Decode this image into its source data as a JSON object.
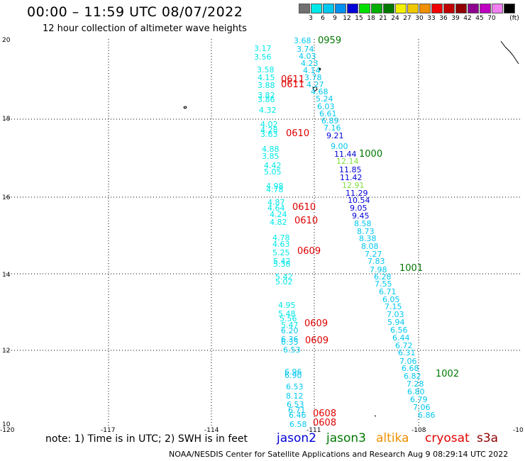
{
  "title": "00:00 – 11:59 UTC 08/07/2022",
  "subtitle": "12 hour collection of altimeter wave heights",
  "legend": {
    "unit": "(ft)",
    "levels": [
      {
        "label": "",
        "color": "#707070"
      },
      {
        "label": "3",
        "color": "#00e8e8"
      },
      {
        "label": "6",
        "color": "#00c8f0"
      },
      {
        "label": "9",
        "color": "#0090f0"
      },
      {
        "label": "12",
        "color": "#0000d8"
      },
      {
        "label": "15",
        "color": "#00e000"
      },
      {
        "label": "18",
        "color": "#00b000"
      },
      {
        "label": "21",
        "color": "#007800"
      },
      {
        "label": "24",
        "color": "#f0f000"
      },
      {
        "label": "27",
        "color": "#f0c800"
      },
      {
        "label": "30",
        "color": "#f09000"
      },
      {
        "label": "33",
        "color": "#f00000"
      },
      {
        "label": "36",
        "color": "#c00000"
      },
      {
        "label": "39",
        "color": "#900000"
      },
      {
        "label": "42",
        "color": "#900090"
      },
      {
        "label": "45",
        "color": "#c000c0"
      },
      {
        "label": "70",
        "color": "#f080f0"
      },
      {
        "label": "",
        "color": "#000000"
      }
    ]
  },
  "axes": {
    "lat_labels": [
      "20",
      "18",
      "16",
      "14",
      "12",
      "10"
    ],
    "lon_labels": [
      "-120",
      "-117",
      "-114",
      "-111",
      "-108",
      "-10"
    ]
  },
  "wave_heights": [
    {
      "value": "3.68",
      "color": "#00c8f0",
      "track": "e"
    },
    {
      "value": "3.74",
      "color": "#00c8f0",
      "track": "e"
    },
    {
      "value": "4.03",
      "color": "#00c8f0",
      "track": "e"
    },
    {
      "value": "4.23",
      "color": "#00c8f0",
      "track": "e"
    },
    {
      "value": "4.14",
      "color": "#00c8f0",
      "track": "e"
    },
    {
      "value": "3.78",
      "color": "#00c8f0",
      "track": "e"
    },
    {
      "value": "4.27",
      "color": "#00c8f0",
      "track": "e"
    },
    {
      "value": "4.68",
      "color": "#00c8f0",
      "track": "e"
    },
    {
      "value": "5.24",
      "color": "#00c8f0",
      "track": "e"
    },
    {
      "value": "6.03",
      "color": "#00c8f0",
      "track": "e"
    },
    {
      "value": "6.61",
      "color": "#00c8f0",
      "track": "e"
    },
    {
      "value": "6.89",
      "color": "#00c8f0",
      "track": "e"
    },
    {
      "value": "7.16",
      "color": "#00c8f0",
      "track": "e"
    },
    {
      "value": "9.21",
      "color": "#0000d8",
      "track": "e"
    },
    {
      "value": "9.00",
      "color": "#00c8f0",
      "track": "e"
    },
    {
      "value": "11.44",
      "color": "#0000d8",
      "track": "e"
    },
    {
      "value": "12.14",
      "color": "#80e040",
      "track": "e"
    },
    {
      "value": "11.85",
      "color": "#0000d8",
      "track": "e"
    },
    {
      "value": "11.42",
      "color": "#0000d8",
      "track": "e"
    },
    {
      "value": "12.91",
      "color": "#80e040",
      "track": "e"
    },
    {
      "value": "11.29",
      "color": "#0000d8",
      "track": "e"
    },
    {
      "value": "10.54",
      "color": "#0000d8",
      "track": "e"
    },
    {
      "value": "9.05",
      "color": "#0000d8",
      "track": "e"
    },
    {
      "value": "9.45",
      "color": "#0000d8",
      "track": "e"
    },
    {
      "value": "8.58",
      "color": "#00c8f0",
      "track": "e"
    },
    {
      "value": "8.73",
      "color": "#00c8f0",
      "track": "e"
    },
    {
      "value": "8.38",
      "color": "#00c8f0",
      "track": "e"
    },
    {
      "value": "8.08",
      "color": "#00c8f0",
      "track": "e"
    },
    {
      "value": "7.27",
      "color": "#00c8f0",
      "track": "e"
    },
    {
      "value": "7.83",
      "color": "#00c8f0",
      "track": "e"
    },
    {
      "value": "7.98",
      "color": "#00c8f0",
      "track": "e"
    },
    {
      "value": "6.28",
      "color": "#00c8f0",
      "track": "e"
    },
    {
      "value": "7.55",
      "color": "#00c8f0",
      "track": "e"
    },
    {
      "value": "6.71",
      "color": "#00c8f0",
      "track": "e"
    },
    {
      "value": "6.05",
      "color": "#00c8f0",
      "track": "e"
    },
    {
      "value": "7.15",
      "color": "#00c8f0",
      "track": "e"
    },
    {
      "value": "7.03",
      "color": "#00c8f0",
      "track": "e"
    },
    {
      "value": "5.94",
      "color": "#00c8f0",
      "track": "e"
    },
    {
      "value": "6.56",
      "color": "#00c8f0",
      "track": "e"
    },
    {
      "value": "6.44",
      "color": "#00c8f0",
      "track": "e"
    },
    {
      "value": "6.72",
      "color": "#00c8f0",
      "track": "e"
    },
    {
      "value": "6.31",
      "color": "#00c8f0",
      "track": "e"
    },
    {
      "value": "7.06",
      "color": "#00c8f0",
      "track": "e"
    },
    {
      "value": "6.68",
      "color": "#00c8f0",
      "track": "e"
    },
    {
      "value": "6.82",
      "color": "#00c8f0",
      "track": "e"
    },
    {
      "value": "7.28",
      "color": "#00c8f0",
      "track": "e"
    },
    {
      "value": "6.80",
      "color": "#00c8f0",
      "track": "e"
    },
    {
      "value": "6.79",
      "color": "#00c8f0",
      "track": "e"
    },
    {
      "value": "7.06",
      "color": "#00c8f0",
      "track": "e"
    },
    {
      "value": "6.86",
      "color": "#00c8f0",
      "track": "e"
    },
    {
      "value": "3.17",
      "color": "#00e8e8",
      "track": "w"
    },
    {
      "value": "3.56",
      "color": "#00e8e8",
      "track": "w"
    },
    {
      "value": "3.58",
      "color": "#00e8e8",
      "track": "w"
    },
    {
      "value": "4.15",
      "color": "#00e8e8",
      "track": "w"
    },
    {
      "value": "3.88",
      "color": "#00e8e8",
      "track": "w"
    },
    {
      "value": "3.82",
      "color": "#00e8e8",
      "track": "w"
    },
    {
      "value": "3.86",
      "color": "#00e8e8",
      "track": "w"
    },
    {
      "value": "4.32",
      "color": "#00e8e8",
      "track": "w"
    },
    {
      "value": "4.02",
      "color": "#00e8e8",
      "track": "w"
    },
    {
      "value": "4.28",
      "color": "#00e8e8",
      "track": "w"
    },
    {
      "value": "3.63",
      "color": "#00e8e8",
      "track": "w"
    },
    {
      "value": "4.88",
      "color": "#00e8e8",
      "track": "w"
    },
    {
      "value": "3.85",
      "color": "#00e8e8",
      "track": "w"
    },
    {
      "value": "4.42",
      "color": "#00e8e8",
      "track": "w"
    },
    {
      "value": "5.05",
      "color": "#00e8e8",
      "track": "w"
    },
    {
      "value": "4.98",
      "color": "#00e8e8",
      "track": "w"
    },
    {
      "value": "4.78",
      "color": "#00e8e8",
      "track": "w"
    },
    {
      "value": "4.87",
      "color": "#00e8e8",
      "track": "w"
    },
    {
      "value": "4.64",
      "color": "#00e8e8",
      "track": "w"
    },
    {
      "value": "4.24",
      "color": "#00e8e8",
      "track": "w"
    },
    {
      "value": "4.82",
      "color": "#00e8e8",
      "track": "w"
    },
    {
      "value": "4.78",
      "color": "#00e8e8",
      "track": "w"
    },
    {
      "value": "4.63",
      "color": "#00e8e8",
      "track": "w"
    },
    {
      "value": "5.25",
      "color": "#00e8e8",
      "track": "w"
    },
    {
      "value": "5.42",
      "color": "#00e8e8",
      "track": "w"
    },
    {
      "value": "5.38",
      "color": "#00e8e8",
      "track": "w"
    },
    {
      "value": "5.42",
      "color": "#00e8e8",
      "track": "w"
    },
    {
      "value": "5.02",
      "color": "#00e8e8",
      "track": "w"
    },
    {
      "value": "4.95",
      "color": "#00e8e8",
      "track": "w"
    },
    {
      "value": "5.48",
      "color": "#00e8e8",
      "track": "w"
    },
    {
      "value": "5.56",
      "color": "#00e8e8",
      "track": "w"
    },
    {
      "value": "5.47",
      "color": "#00e8e8",
      "track": "w"
    },
    {
      "value": "6.20",
      "color": "#00c8f0",
      "track": "w"
    },
    {
      "value": "6.36",
      "color": "#00c8f0",
      "track": "w"
    },
    {
      "value": "6.35",
      "color": "#00c8f0",
      "track": "w"
    },
    {
      "value": "6.53",
      "color": "#00c8f0",
      "track": "w"
    },
    {
      "value": "6.96",
      "color": "#00c8f0",
      "track": "w"
    },
    {
      "value": "6.90",
      "color": "#00c8f0",
      "track": "w"
    },
    {
      "value": "6.53",
      "color": "#00c8f0",
      "track": "w"
    },
    {
      "value": "8.12",
      "color": "#00c8f0",
      "track": "w"
    },
    {
      "value": "6.53",
      "color": "#00c8f0",
      "track": "w"
    },
    {
      "value": "6.71",
      "color": "#00c8f0",
      "track": "w"
    },
    {
      "value": "6.46",
      "color": "#00c8f0",
      "track": "w"
    },
    {
      "value": "6.58",
      "color": "#00c8f0",
      "track": "w"
    }
  ],
  "pass_times": [
    {
      "text": "0959",
      "color": "#007800"
    },
    {
      "text": "0611",
      "color": "#e00000"
    },
    {
      "text": "0611",
      "color": "#e00000"
    },
    {
      "text": "1000",
      "color": "#007800"
    },
    {
      "text": "0610",
      "color": "#e00000"
    },
    {
      "text": "0610",
      "color": "#e00000"
    },
    {
      "text": "0610",
      "color": "#e00000"
    },
    {
      "text": "0609",
      "color": "#e00000"
    },
    {
      "text": "1001",
      "color": "#007800"
    },
    {
      "text": "0609",
      "color": "#e00000"
    },
    {
      "text": "0609",
      "color": "#e00000"
    },
    {
      "text": "1002",
      "color": "#007800"
    },
    {
      "text": "0608",
      "color": "#e00000"
    },
    {
      "text": "0608",
      "color": "#e00000"
    }
  ],
  "footer": {
    "note": "note: 1) Time is in UTC; 2) SWH is in feet",
    "satellites": [
      {
        "name": "jason2",
        "color": "#0000d8"
      },
      {
        "name": "jason3",
        "color": "#007800"
      },
      {
        "name": "altika",
        "color": "#f09000"
      },
      {
        "name": "cryosat",
        "color": "#e00000"
      },
      {
        "name": "s3a",
        "color": "#900000"
      }
    ],
    "credit": "NOAA/NESDIS Center for Satellite Applications and Research     Aug  9 08:29:14 UTC 2022"
  }
}
